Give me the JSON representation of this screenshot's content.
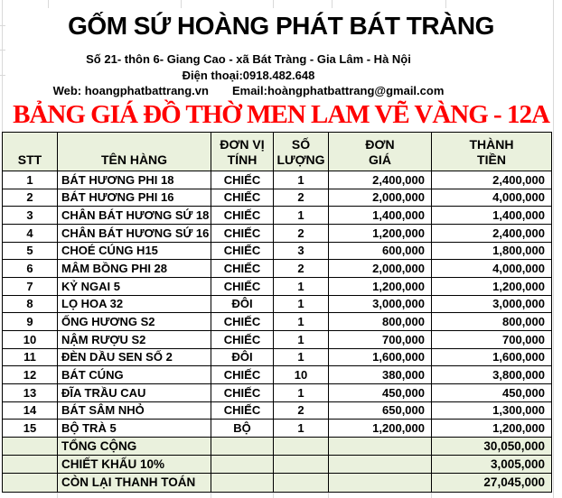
{
  "header": {
    "company": "GỐM SỨ HOÀNG PHÁT BÁT TRÀNG",
    "address": "Số 21- thôn 6- Giang Cao - xã Bát Tràng - Gia Lâm - Hà Nội",
    "phone": "Điện thoại:0918.482.648",
    "web": "Web: hoangphatbattrang.vn",
    "email": "Email:hoàngphatbattrang@gmail.com",
    "title": "BẢNG GIÁ ĐỒ THỜ MEN LAM VẼ VÀNG - 12A"
  },
  "colors": {
    "title_red": "#FF0000",
    "table_header_green": "#EAF1DD",
    "border_black": "#000000"
  },
  "table": {
    "columns": [
      {
        "key": "stt",
        "label": "STT"
      },
      {
        "key": "ten-hang",
        "label": "TÊN HÀNG"
      },
      {
        "key": "don-vi-tinh",
        "label": "ĐƠN VỊ\nTÍNH"
      },
      {
        "key": "so-luong",
        "label": "SỐ\nLƯỢNG"
      },
      {
        "key": "don-gia",
        "label": "ĐƠN\nGIÁ"
      },
      {
        "key": "thanh-tien",
        "label": "THÀNH\nTIỀN"
      }
    ],
    "rows": [
      [
        "1",
        "BÁT HƯƠNG PHI 18",
        "CHIẾC",
        "1",
        "2,400,000",
        "2,400,000"
      ],
      [
        "2",
        "BÁT HƯƠNG PHI 16",
        "CHIẾC",
        "2",
        "2,000,000",
        "4,000,000"
      ],
      [
        "3",
        "CHÂN BÁT HƯƠNG SỨ 18",
        "CHIẾC",
        "1",
        "1,400,000",
        "1,400,000"
      ],
      [
        "4",
        "CHÂN BÁT HƯƠNG SỨ 16",
        "CHIẾC",
        "2",
        "1,200,000",
        "2,400,000"
      ],
      [
        "5",
        "CHOÉ CÚNG H15",
        "CHIẾC",
        "3",
        "600,000",
        "1,800,000"
      ],
      [
        "6",
        "MÂM BỒNG PHI 28",
        "CHIẾC",
        "2",
        "2,000,000",
        "4,000,000"
      ],
      [
        "7",
        "KỶ NGAI 5",
        "CHIẾC",
        "1",
        "1,200,000",
        "1,200,000"
      ],
      [
        "8",
        "LỌ HOA 32",
        "ĐÔI",
        "1",
        "3,000,000",
        "3,000,000"
      ],
      [
        "9",
        "ỐNG HƯƠNG S2",
        "CHIẾC",
        "1",
        "800,000",
        "800,000"
      ],
      [
        "10",
        "NẬM RƯỢU S2",
        "CHIẾC",
        "1",
        "700,000",
        "700,000"
      ],
      [
        "11",
        "ĐÈN DẦU SEN SỐ 2",
        "ĐÔI",
        "1",
        "1,600,000",
        "1,600,000"
      ],
      [
        "12",
        "BÁT CÚNG",
        "CHIẾC",
        "10",
        "380,000",
        "3,800,000"
      ],
      [
        "13",
        "ĐĨA TRẦU CAU",
        "CHIẾC",
        "1",
        "450,000",
        "450,000"
      ],
      [
        "14",
        "BÁT SÂM NHỎ",
        "CHIẾC",
        "2",
        "650,000",
        "1,300,000"
      ],
      [
        "15",
        "BỘ TRÀ 5",
        "BỘ",
        "1",
        "1,200,000",
        "1,200,000"
      ]
    ],
    "summary": [
      {
        "label": "TỔNG CỘNG",
        "value": "30,050,000"
      },
      {
        "label": "CHIẾT KHẤU 10%",
        "value": "3,005,000"
      },
      {
        "label": "CÒN LẠI THANH TOÁN",
        "value": "27,045,000"
      }
    ]
  }
}
